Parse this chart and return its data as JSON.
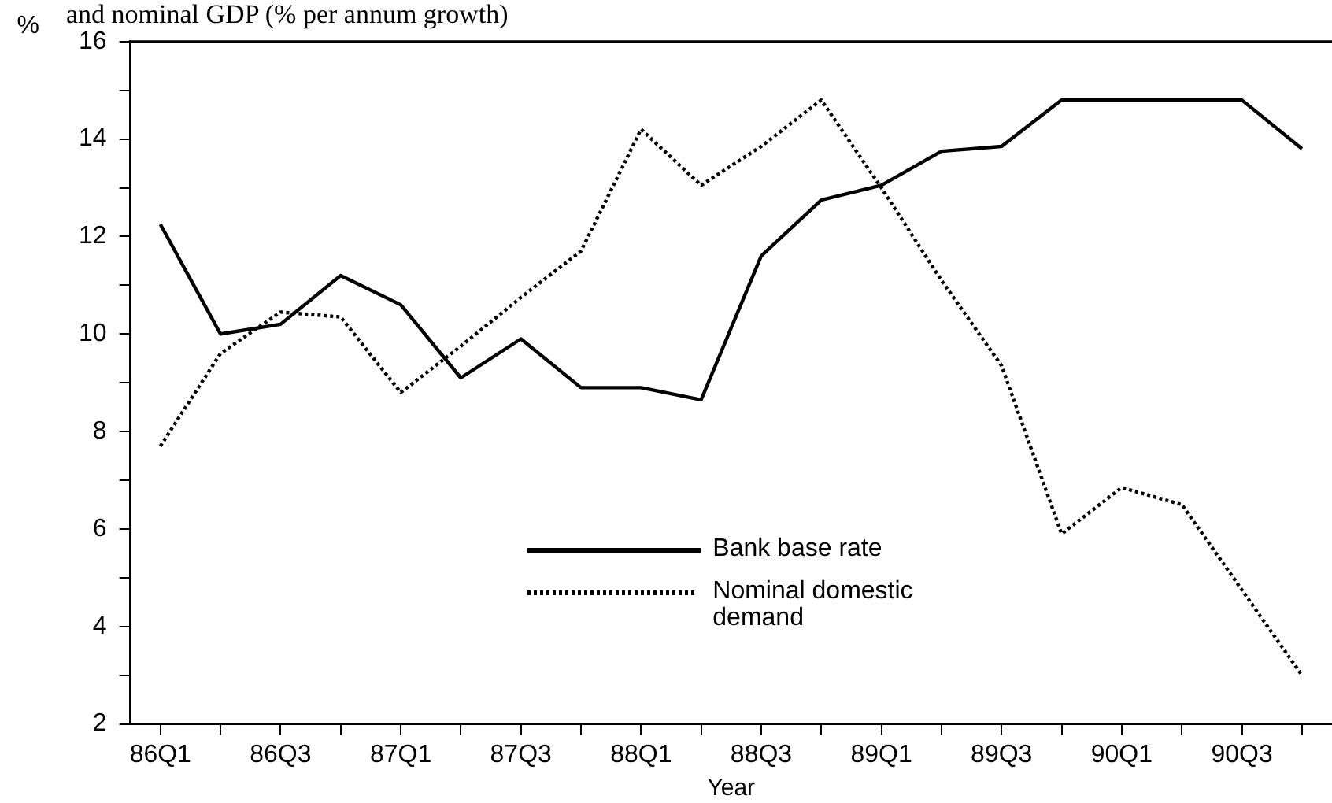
{
  "chart_data": {
    "type": "line",
    "title": "and nominal GDP (% per annum growth)",
    "xlabel": "Year",
    "ylabel": "%",
    "categories": [
      "86Q1",
      null,
      "86Q3",
      null,
      "87Q1",
      null,
      "87Q3",
      null,
      "88Q1",
      null,
      "88Q3",
      null,
      "89Q1",
      null,
      "89Q3",
      null,
      "90Q1",
      null,
      "90Q3",
      null
    ],
    "series": [
      {
        "name": "Bank base rate",
        "color": "#000000",
        "line_style": "solid",
        "values": [
          12.25,
          10.0,
          10.2,
          11.2,
          10.6,
          9.1,
          9.9,
          8.9,
          8.9,
          8.65,
          11.6,
          12.75,
          13.05,
          13.75,
          13.85,
          14.8,
          14.8,
          14.8,
          14.8,
          13.8
        ]
      },
      {
        "name": "Nominal domestic demand",
        "color": "#000000",
        "line_style": "dotted",
        "values": [
          7.7,
          9.6,
          10.45,
          10.35,
          8.8,
          9.75,
          10.75,
          11.7,
          14.2,
          13.05,
          13.85,
          14.8,
          13.0,
          11.1,
          9.35,
          5.9,
          6.85,
          6.5,
          4.75,
          3.0
        ]
      }
    ],
    "ylim": [
      2,
      16
    ],
    "yticks": [
      2,
      {
        "value": 3,
        "label": null
      },
      4,
      {
        "value": 5,
        "label": null
      },
      6,
      {
        "value": 7,
        "label": null
      },
      8,
      {
        "value": 9,
        "label": null
      },
      10,
      {
        "value": 11,
        "label": null
      },
      12,
      {
        "value": 13,
        "label": null
      },
      14,
      {
        "value": 15,
        "label": null
      },
      16
    ],
    "grid": false,
    "legend": "bottom",
    "marker": "none"
  }
}
